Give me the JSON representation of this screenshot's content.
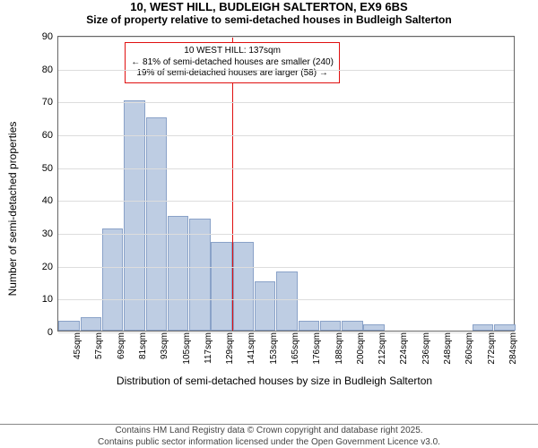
{
  "title": "10, WEST HILL, BUDLEIGH SALTERTON, EX9 6BS",
  "subtitle": "Size of property relative to semi-detached houses in Budleigh Salterton",
  "chart": {
    "type": "histogram",
    "ylabel": "Number of semi-detached properties",
    "xlabel": "Distribution of semi-detached houses by size in Budleigh Salterton",
    "ylim": [
      0,
      90
    ],
    "yticks": [
      0,
      10,
      20,
      30,
      40,
      50,
      60,
      70,
      80,
      90
    ],
    "grid_color": "#dddddd",
    "axis_color": "#666666",
    "bar_fill": "#becde3",
    "bar_border": "#8aa2c8",
    "background": "#ffffff",
    "categories": [
      "45sqm",
      "57sqm",
      "69sqm",
      "81sqm",
      "93sqm",
      "105sqm",
      "117sqm",
      "129sqm",
      "141sqm",
      "153sqm",
      "165sqm",
      "176sqm",
      "188sqm",
      "200sqm",
      "212sqm",
      "224sqm",
      "236sqm",
      "248sqm",
      "260sqm",
      "272sqm",
      "284sqm"
    ],
    "values": [
      3,
      4,
      31,
      70,
      65,
      35,
      34,
      27,
      27,
      15,
      18,
      3,
      3,
      3,
      2,
      0,
      0,
      0,
      0,
      2,
      2
    ],
    "bar_width_ratio": 0.96,
    "reference": {
      "x_category_index": 8,
      "color": "#e01010",
      "box_border": "#e01010",
      "box_bg": "#ffffff",
      "line1": "10 WEST HILL: 137sqm",
      "line2": "← 81% of semi-detached houses are smaller (240)",
      "line3": "19% of semi-detached houses are larger (58) →"
    }
  },
  "footer": {
    "line1": "Contains HM Land Registry data © Crown copyright and database right 2025.",
    "line2": "Contains public sector information licensed under the Open Government Licence v3.0."
  }
}
